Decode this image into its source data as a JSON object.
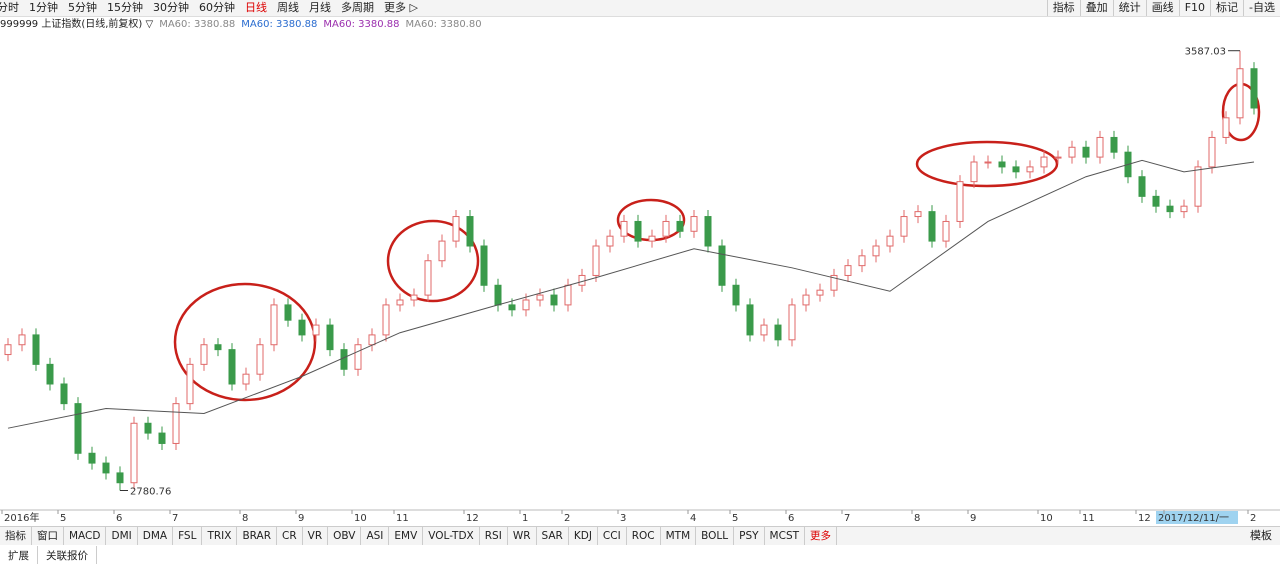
{
  "toolbar": {
    "left": [
      "分时",
      "1分钟",
      "5分钟",
      "15分钟",
      "30分钟",
      "60分钟",
      "日线",
      "周线",
      "月线",
      "多周期",
      "更多 ▷"
    ],
    "right": [
      "指标",
      "叠加",
      "统计",
      "画线",
      "F10",
      "标记",
      "-自选"
    ]
  },
  "header": {
    "title": "999999 上证指数(日线,前复权) ▽",
    "ma": [
      "MA60: 3380.88",
      "MA60: 3380.88",
      "MA60: 3380.88",
      "MA60: 3380.80"
    ]
  },
  "tabs": {
    "items": [
      "指标",
      "窗口",
      "MACD",
      "DMI",
      "DMA",
      "FSL",
      "TRIX",
      "BRAR",
      "CR",
      "VR",
      "OBV",
      "ASI",
      "EMV",
      "VOL-TDX",
      "RSI",
      "WR",
      "SAR",
      "KDJ",
      "CCI",
      "ROC",
      "MTM",
      "BOLL",
      "PSY",
      "MCST",
      "更多"
    ],
    "right": "模板"
  },
  "footer": [
    "扩展",
    "关联报价"
  ],
  "chart_data": {
    "type": "candlestick",
    "up_color": "#e06a6a",
    "down_color": "#3a9a4a",
    "ylim": [
      2745,
      3625
    ],
    "categories": [
      "2016年",
      null,
      null,
      null,
      "5",
      null,
      null,
      null,
      "6",
      null,
      null,
      null,
      "7",
      null,
      null,
      null,
      null,
      "8",
      null,
      null,
      null,
      "9",
      null,
      null,
      null,
      "10",
      null,
      null,
      "11",
      null,
      null,
      null,
      null,
      "12",
      null,
      null,
      null,
      "1",
      null,
      null,
      "2",
      null,
      null,
      null,
      "3",
      null,
      null,
      null,
      null,
      "4",
      null,
      null,
      "5",
      null,
      null,
      null,
      "6",
      null,
      null,
      null,
      "7",
      null,
      null,
      null,
      null,
      "8",
      null,
      null,
      null,
      "9",
      null,
      null,
      null,
      null,
      "10",
      null,
      null,
      "11",
      null,
      null,
      null,
      "12",
      null,
      "2017/12/11/一",
      null,
      null,
      null,
      null,
      null,
      "2"
    ],
    "open": [
      3030,
      3048,
      3066,
      3012,
      2976,
      2940,
      2849,
      2831,
      2813,
      2795,
      2904,
      2886,
      2867,
      2940,
      3012,
      3048,
      3039,
      2976,
      2994,
      3048,
      3121,
      3093,
      3066,
      3084,
      3039,
      3003,
      3048,
      3066,
      3121,
      3130,
      3139,
      3202,
      3238,
      3283,
      3229,
      3157,
      3121,
      3112,
      3130,
      3139,
      3121,
      3157,
      3175,
      3229,
      3247,
      3274,
      3238,
      3247,
      3274,
      3256,
      3283,
      3229,
      3157,
      3121,
      3066,
      3084,
      3057,
      3121,
      3139,
      3148,
      3175,
      3193,
      3211,
      3229,
      3247,
      3283,
      3292,
      3238,
      3274,
      3347,
      3383,
      3383,
      3374,
      3365,
      3374,
      3392,
      3392,
      3410,
      3392,
      3428,
      3401,
      3356,
      3320,
      3302,
      3292,
      3302,
      3374,
      3428,
      3464,
      3554
    ],
    "close": [
      3048,
      3066,
      3012,
      2976,
      2940,
      2849,
      2831,
      2813,
      2795,
      2904,
      2886,
      2867,
      2940,
      3012,
      3048,
      3039,
      2976,
      2994,
      3048,
      3121,
      3093,
      3066,
      3084,
      3039,
      3003,
      3048,
      3066,
      3121,
      3130,
      3139,
      3202,
      3238,
      3283,
      3229,
      3157,
      3121,
      3112,
      3130,
      3139,
      3121,
      3157,
      3175,
      3229,
      3247,
      3274,
      3238,
      3247,
      3274,
      3256,
      3283,
      3229,
      3157,
      3121,
      3066,
      3084,
      3057,
      3121,
      3139,
      3148,
      3175,
      3193,
      3211,
      3229,
      3247,
      3283,
      3292,
      3238,
      3274,
      3347,
      3383,
      3383,
      3374,
      3365,
      3374,
      3392,
      3392,
      3410,
      3392,
      3428,
      3401,
      3356,
      3320,
      3302,
      3292,
      3302,
      3374,
      3428,
      3464,
      3554,
      3482
    ],
    "high": [
      3060,
      3078,
      3078,
      3024,
      2988,
      2952,
      2861,
      2843,
      2825,
      2916,
      2916,
      2898,
      2952,
      3024,
      3060,
      3060,
      3051,
      3006,
      3060,
      3133,
      3133,
      3105,
      3096,
      3096,
      3051,
      3060,
      3078,
      3133,
      3142,
      3151,
      3214,
      3250,
      3295,
      3295,
      3241,
      3169,
      3133,
      3142,
      3151,
      3151,
      3169,
      3187,
      3241,
      3259,
      3286,
      3286,
      3259,
      3286,
      3286,
      3295,
      3295,
      3241,
      3169,
      3133,
      3096,
      3096,
      3133,
      3151,
      3160,
      3187,
      3205,
      3223,
      3241,
      3259,
      3295,
      3304,
      3304,
      3286,
      3359,
      3395,
      3395,
      3395,
      3386,
      3386,
      3404,
      3404,
      3422,
      3422,
      3440,
      3440,
      3413,
      3368,
      3332,
      3314,
      3314,
      3386,
      3440,
      3476,
      3587.03,
      3566
    ],
    "low": [
      3018,
      3036,
      3000,
      2964,
      2928,
      2837,
      2819,
      2801,
      2780.76,
      2783,
      2874,
      2855,
      2855,
      2928,
      3000,
      3027,
      2964,
      2964,
      2982,
      3036,
      3081,
      3054,
      3054,
      3027,
      2991,
      2991,
      3036,
      3054,
      3109,
      3118,
      3127,
      3190,
      3226,
      3217,
      3145,
      3109,
      3100,
      3100,
      3118,
      3109,
      3109,
      3145,
      3163,
      3217,
      3235,
      3226,
      3226,
      3235,
      3244,
      3244,
      3217,
      3145,
      3109,
      3054,
      3054,
      3045,
      3045,
      3109,
      3127,
      3136,
      3163,
      3181,
      3199,
      3217,
      3235,
      3271,
      3226,
      3226,
      3262,
      3335,
      3371,
      3362,
      3353,
      3353,
      3362,
      3380,
      3380,
      3380,
      3380,
      3389,
      3344,
      3308,
      3290,
      3280,
      3280,
      3290,
      3362,
      3416,
      3452,
      3470
    ],
    "ma": {
      "color": "#555555",
      "x": [
        0,
        7,
        14,
        21,
        28,
        35,
        42,
        49,
        56,
        63,
        70,
        77,
        81,
        84,
        89
      ],
      "values": [
        2895,
        2931,
        2922,
        2990,
        3070,
        3121,
        3171,
        3224,
        3189,
        3146,
        3274,
        3356,
        3386,
        3365,
        3383
      ]
    }
  }
}
